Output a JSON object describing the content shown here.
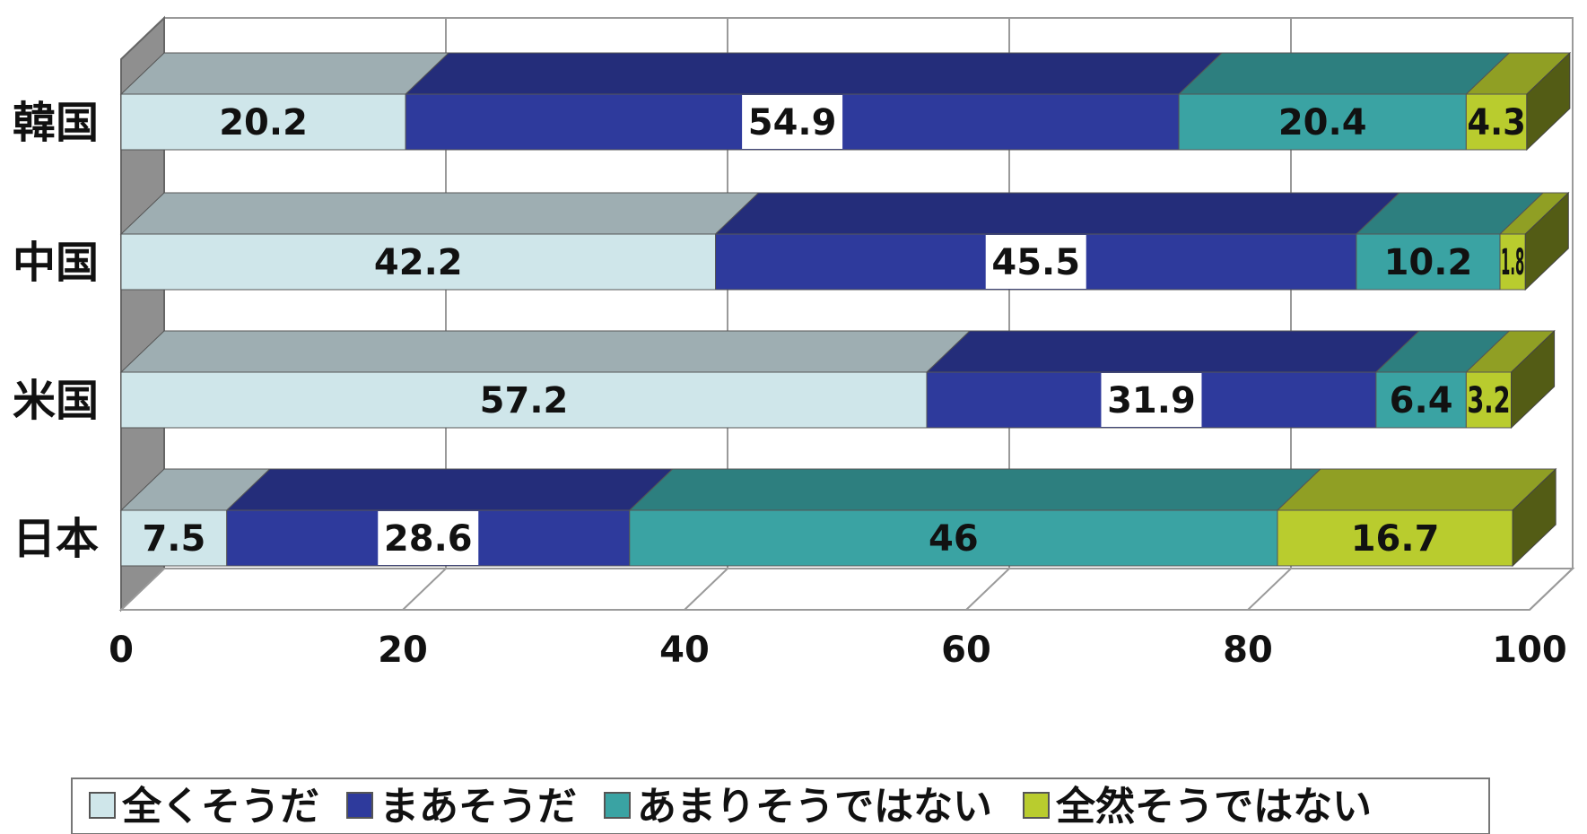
{
  "chart_data": {
    "type": "bar",
    "orientation": "horizontal",
    "stacked": true,
    "style": "3d",
    "title": "",
    "xlabel": "",
    "ylabel": "",
    "xlim": [
      0,
      100
    ],
    "x_ticks": [
      0,
      20,
      40,
      60,
      80,
      100
    ],
    "grid": true,
    "legend_position": "bottom",
    "categories": [
      "韓国",
      "中国",
      "米国",
      "日本"
    ],
    "series": [
      {
        "name": "全くそうだ",
        "color": "#cfe6ea",
        "values": [
          20.2,
          42.2,
          57.2,
          7.5
        ],
        "labels": [
          "20.2",
          "42.2",
          "57.2",
          "7.5"
        ]
      },
      {
        "name": "まあそうだ",
        "color": "#2e3a9c",
        "values": [
          54.9,
          45.5,
          31.9,
          28.6
        ],
        "labels": [
          "54.9",
          "45.5",
          "31.9",
          "28.6"
        ]
      },
      {
        "name": "あまりそうではない",
        "color": "#3aa3a3",
        "values": [
          20.4,
          10.2,
          6.4,
          46
        ],
        "labels": [
          "20.4",
          "10.2",
          "6.4",
          "46"
        ]
      },
      {
        "name": "全然そうではない",
        "color": "#b9cc2e",
        "values": [
          4.3,
          1.8,
          3.2,
          16.7
        ],
        "labels": [
          "4.3",
          "1.8",
          "3.2",
          "16.7"
        ]
      }
    ]
  }
}
